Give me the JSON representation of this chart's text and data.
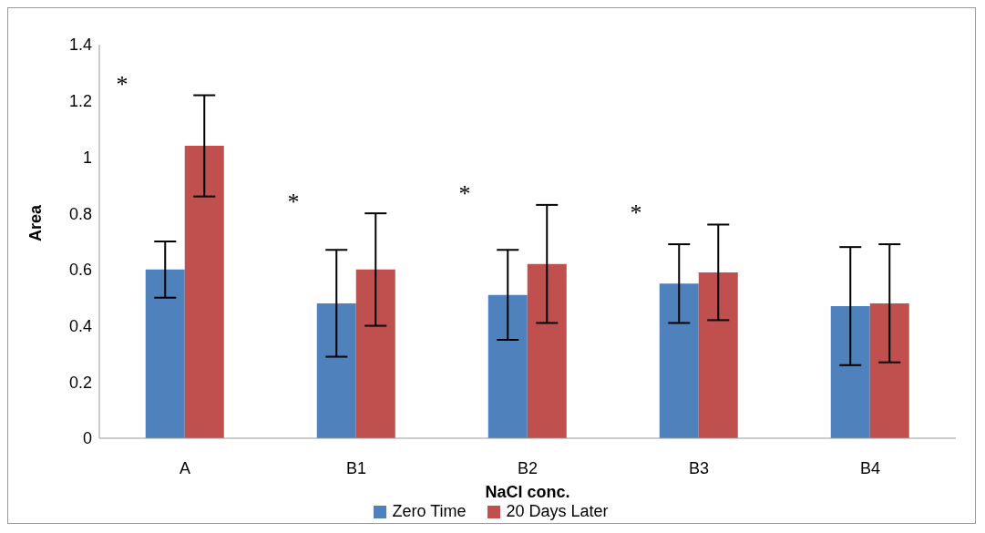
{
  "chart_data": {
    "type": "bar",
    "xlabel": "NaCl conc.",
    "ylabel": "Area",
    "categories": [
      "A",
      "B1",
      "B2",
      "B3",
      "B4"
    ],
    "series": [
      {
        "name": "Zero Time",
        "color": "#4f81bd",
        "values": [
          0.6,
          0.48,
          0.51,
          0.55,
          0.47
        ],
        "errors": [
          0.1,
          0.19,
          0.16,
          0.14,
          0.21
        ]
      },
      {
        "name": "20 Days Later",
        "color": "#c0504d",
        "values": [
          1.04,
          0.6,
          0.62,
          0.59,
          0.48
        ],
        "errors": [
          0.18,
          0.2,
          0.21,
          0.17,
          0.21
        ]
      }
    ],
    "ylim": [
      0,
      1.4
    ],
    "yticks": [
      0,
      0.2,
      0.4,
      0.6,
      0.8,
      1,
      1.2,
      1.4
    ],
    "grid": false,
    "legend": "bottom",
    "annotations": [
      "*",
      "*",
      "*",
      "*"
    ]
  }
}
